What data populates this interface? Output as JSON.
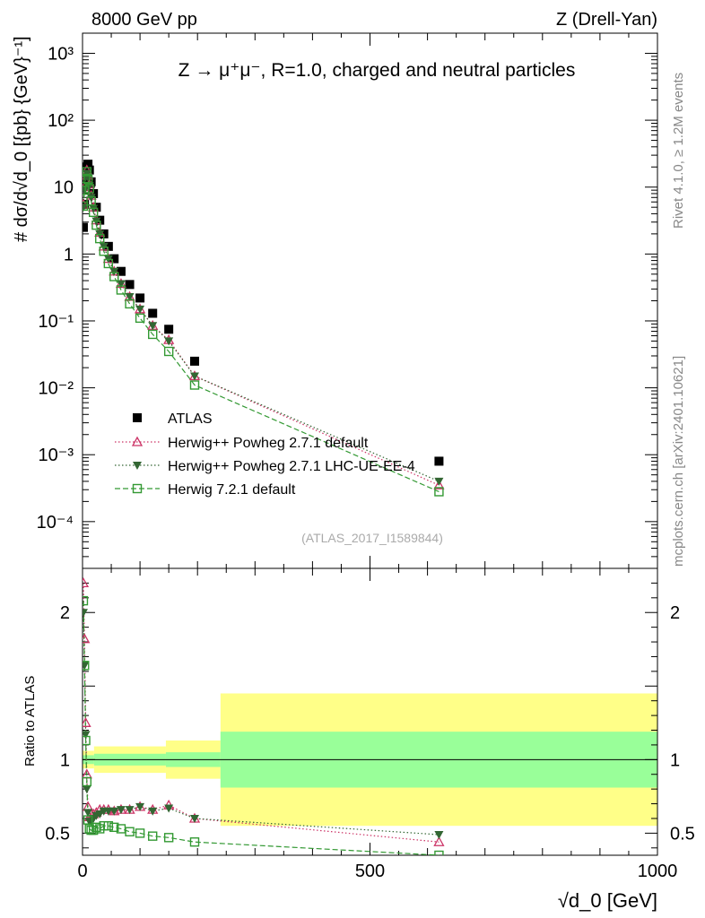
{
  "header": {
    "left": "8000 GeV pp",
    "right": "Z (Drell-Yan)"
  },
  "side_labels": {
    "rivet": "Rivet 4.1.0, ≥ 1.2M events",
    "mcplots": "mcplots.cern.ch [arXiv:2401.10621]"
  },
  "chart_data": {
    "type": "line",
    "title": "Z → μ⁺μ⁻, R=1.0, charged and neutral particles",
    "analysis_id": "(ATLAS_2017_I1589844)",
    "xlabel": "√d_0 [GeV]",
    "ylabel": "# dσ/d√d_0 [{pb} {GeV}⁻¹]",
    "ratio_ylabel": "Ratio to ATLAS",
    "xlim": [
      0,
      1000
    ],
    "ylim": [
      2e-05,
      2000
    ],
    "ratio_ylim": [
      0.35,
      2.3
    ],
    "x_ticks": [
      "0",
      "500",
      "1000"
    ],
    "y_ticks": [
      "10⁻⁴",
      "10⁻³",
      "10⁻²",
      "10⁻¹",
      "1",
      "10",
      "10²",
      "10³"
    ],
    "ratio_ticks": [
      "0.5",
      "1",
      "2"
    ],
    "x": [
      1.5,
      3.5,
      5.5,
      7.5,
      9.5,
      12,
      15,
      19,
      24,
      30,
      37,
      45,
      55,
      67,
      82,
      100,
      122,
      150,
      195,
      620
    ],
    "bands": [
      {
        "x0": 0,
        "x1": 20,
        "green": 0.03,
        "yellow": 0.06
      },
      {
        "x0": 20,
        "x1": 145,
        "green": 0.04,
        "yellow": 0.09
      },
      {
        "x0": 145,
        "x1": 240,
        "green": 0.05,
        "yellow": 0.13
      },
      {
        "x0": 240,
        "x1": 1000,
        "green": 0.19,
        "yellow": 0.45
      }
    ],
    "legend": [
      {
        "label": "ATLAS"
      },
      {
        "label": "Herwig++ Powheg 2.7.1 default"
      },
      {
        "label": "Herwig++ Powheg 2.7.1 LHC-UE-EE-4"
      },
      {
        "label": "Herwig 7.2.1 default"
      }
    ],
    "series": [
      {
        "name": "ATLAS",
        "color": "#000000",
        "marker": "square-filled",
        "values": [
          2.5,
          5.5,
          12,
          20,
          22,
          18,
          12,
          8,
          5,
          3.2,
          2,
          1.3,
          0.85,
          0.55,
          0.35,
          0.22,
          0.13,
          0.075,
          0.025,
          0.0008
        ]
      },
      {
        "name": "Herwig++ Powheg 2.7.1 default",
        "color": "#cc3366",
        "marker": "triangle-up-open",
        "style": "dotted",
        "values": [
          5.5,
          10,
          15,
          18,
          15,
          11,
          7.5,
          5,
          3.2,
          2.1,
          1.3,
          0.85,
          0.55,
          0.36,
          0.23,
          0.15,
          0.085,
          0.052,
          0.015,
          0.00035
        ],
        "ratio": [
          2.2,
          1.82,
          1.25,
          0.9,
          0.68,
          0.61,
          0.63,
          0.63,
          0.64,
          0.66,
          0.66,
          0.66,
          0.65,
          0.66,
          0.66,
          0.68,
          0.66,
          0.69,
          0.6,
          0.44
        ]
      },
      {
        "name": "Herwig++ Powheg 2.7.1 LHC-UE-EE-4",
        "color": "#336633",
        "marker": "triangle-down-filled",
        "style": "dotted",
        "values": [
          5,
          9,
          14,
          16,
          14,
          10.5,
          7,
          4.8,
          3.1,
          2,
          1.3,
          0.85,
          0.55,
          0.36,
          0.23,
          0.15,
          0.085,
          0.05,
          0.015,
          0.0004
        ],
        "ratio": [
          2.0,
          1.64,
          1.17,
          0.8,
          0.64,
          0.58,
          0.58,
          0.6,
          0.62,
          0.63,
          0.65,
          0.65,
          0.65,
          0.66,
          0.66,
          0.68,
          0.65,
          0.67,
          0.6,
          0.49
        ]
      },
      {
        "name": "Herwig 7.2.1 default",
        "color": "#339933",
        "marker": "square-open",
        "style": "dashed",
        "values": [
          5.2,
          9,
          13.5,
          17,
          13,
          9.5,
          6.2,
          4.2,
          2.7,
          1.7,
          1.1,
          0.72,
          0.46,
          0.29,
          0.18,
          0.11,
          0.063,
          0.035,
          0.011,
          0.00028
        ],
        "ratio": [
          2.08,
          1.64,
          1.13,
          0.85,
          0.59,
          0.53,
          0.52,
          0.52,
          0.54,
          0.53,
          0.55,
          0.55,
          0.54,
          0.53,
          0.51,
          0.5,
          0.48,
          0.47,
          0.44,
          0.35
        ]
      }
    ]
  }
}
